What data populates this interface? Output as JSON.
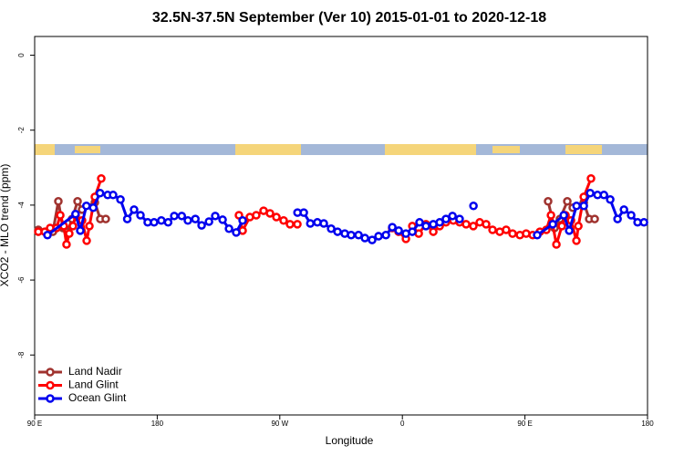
{
  "chart_data": {
    "type": "line",
    "title": "32.5N-37.5N September (Ver 10)   2015-01-01 to 2020-12-18",
    "xlabel": "Longitude",
    "ylabel": "XCO2 - MLO trend (ppm)",
    "xlim": [
      90,
      540
    ],
    "ylim": [
      -9.6,
      0.5
    ],
    "xticks": [
      {
        "value": 90,
        "label": "90 E"
      },
      {
        "value": 180,
        "label": "180"
      },
      {
        "value": 270,
        "label": "90 W"
      },
      {
        "value": 360,
        "label": "0"
      },
      {
        "value": 450,
        "label": "90 E"
      },
      {
        "value": 540,
        "label": "180"
      }
    ],
    "yticks": [
      0,
      -2,
      -4,
      -6,
      -8
    ],
    "legend": "bottom-left",
    "series": [
      {
        "name": "Land Nadir",
        "color": "#a0332f",
        "x": [
          92.7,
          98.0,
          103.4,
          107.4,
          110.8,
          114.1,
          117.5,
          121.5,
          124.8,
          134.2,
          138.2,
          142.2,
          null,
          467.0,
          471.7,
          475.7,
          481.1,
          485.1,
          493.2,
          497.2,
          501.2
        ],
        "values": [
          -4.66,
          -4.71,
          -4.71,
          -3.9,
          -4.61,
          -4.71,
          -4.37,
          -3.9,
          -4.12,
          -3.93,
          -4.37,
          -4.37,
          null,
          -3.9,
          -4.61,
          -4.37,
          -3.9,
          -4.07,
          -3.93,
          -4.37,
          -4.37
        ]
      },
      {
        "name": "Land Glint",
        "color": "#ff0000",
        "x": [
          92.7,
          97.4,
          101.4,
          106.1,
          108.8,
          111.4,
          113.4,
          115.4,
          118.1,
          120.1,
          124.8,
          128.2,
          130.2,
          134.2,
          138.9,
          null,
          240.0,
          242.7,
          248.0,
          252.7,
          258.1,
          262.8,
          267.5,
          272.8,
          277.5,
          282.9,
          null,
          352.5,
          357.2,
          362.6,
          367.3,
          372.0,
          377.3,
          382.7,
          387.4,
          392.0,
          397.4,
          402.1,
          406.8,
          412.1,
          416.8,
          421.5,
          426.2,
          431.5,
          436.2,
          440.9,
          446.3,
          450.9,
          455.7,
          461.0,
          465.7,
          469.1,
          473.1,
          477.1,
          479.8,
          483.8,
          487.8,
          489.2,
          493.2,
          498.5
        ],
        "values": [
          -4.71,
          -4.71,
          -4.61,
          -4.61,
          -4.27,
          -4.56,
          -5.05,
          -4.76,
          -4.56,
          -4.27,
          -4.41,
          -4.95,
          -4.56,
          -3.78,
          -3.29,
          null,
          -4.27,
          -4.68,
          -4.32,
          -4.27,
          -4.15,
          -4.22,
          -4.32,
          -4.41,
          -4.51,
          -4.51,
          null,
          -4.61,
          -4.71,
          -4.9,
          -4.56,
          -4.76,
          -4.51,
          -4.71,
          -4.56,
          -4.46,
          -4.41,
          -4.46,
          -4.51,
          -4.56,
          -4.46,
          -4.51,
          -4.66,
          -4.71,
          -4.66,
          -4.76,
          -4.8,
          -4.76,
          -4.8,
          -4.71,
          -4.66,
          -4.27,
          -5.05,
          -4.56,
          -4.27,
          -4.41,
          -4.95,
          -4.56,
          -3.78,
          -3.29
        ]
      },
      {
        "name": "Ocean Glint",
        "color": "#0000ee",
        "x": [
          99.4,
          120.0,
          123.5,
          128.0,
          133.0,
          138.0,
          143.6,
          147.6,
          153.0,
          158.0,
          163.0,
          167.7,
          173.0,
          177.7,
          183.0,
          188.0,
          192.5,
          198.0,
          202.5,
          208.0,
          212.6,
          218.0,
          222.6,
          228.0,
          232.7,
          238.0,
          242.7,
          null,
          283.0,
          287.6,
          292.4,
          297.6,
          302.3,
          307.7,
          312.4,
          317.7,
          322.4,
          327.8,
          332.5,
          337.8,
          342.5,
          347.9,
          352.6,
          357.3,
          362.6,
          367.3,
          372.6,
          377.3,
          382.7,
          387.4,
          392.0,
          396.8,
          402.0,
          null,
          412.2,
          null,
          459.0,
          470.4,
          478.5,
          482.5,
          487.9,
          493.2,
          497.9,
          503.3,
          508.0,
          512.6,
          518.0,
          522.7,
          528.0,
          532.7,
          537.4
        ],
        "values": [
          -4.8,
          -4.24,
          -4.68,
          -4.02,
          -4.07,
          -3.68,
          -3.73,
          -3.73,
          -3.85,
          -4.37,
          -4.12,
          -4.27,
          -4.46,
          -4.46,
          -4.41,
          -4.46,
          -4.29,
          -4.29,
          -4.41,
          -4.37,
          -4.54,
          -4.44,
          -4.29,
          -4.39,
          -4.63,
          -4.73,
          -4.41,
          null,
          -4.2,
          -4.2,
          -4.49,
          -4.46,
          -4.49,
          -4.63,
          -4.71,
          -4.76,
          -4.8,
          -4.8,
          -4.88,
          -4.93,
          -4.83,
          -4.8,
          -4.59,
          -4.68,
          -4.76,
          -4.71,
          -4.46,
          -4.56,
          -4.51,
          -4.46,
          -4.37,
          -4.29,
          -4.37,
          null,
          -4.02,
          null,
          -4.8,
          -4.51,
          -4.27,
          -4.68,
          -4.02,
          -4.02,
          -3.68,
          -3.73,
          -3.73,
          -3.85,
          -4.37,
          -4.12,
          -4.27,
          -4.46,
          -4.46
        ]
      }
    ]
  }
}
